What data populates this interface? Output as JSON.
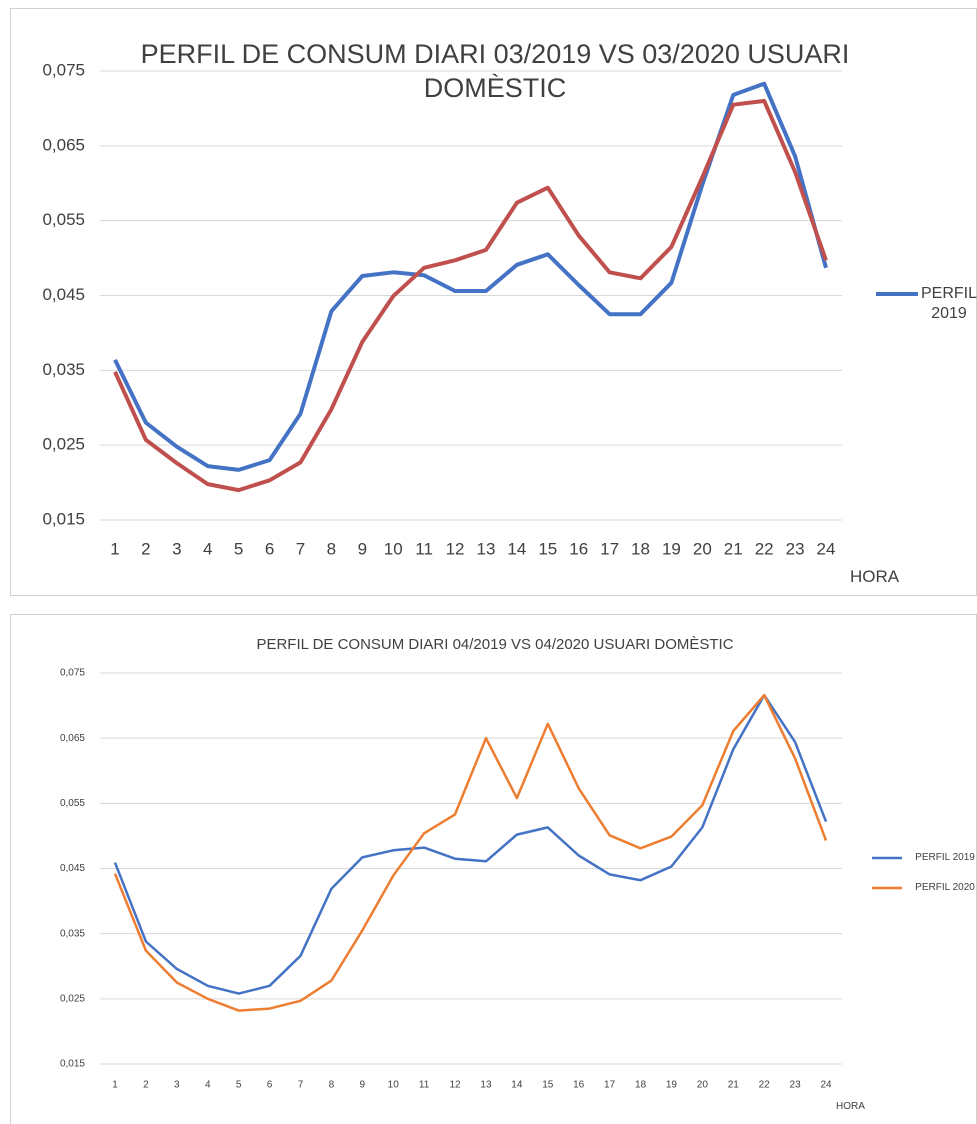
{
  "chart_data": [
    {
      "type": "line",
      "title": "PERFIL DE CONSUM DIARI 03/2019 VS 03/2020 USUARI DOMÈSTIC",
      "xlabel": "HORA",
      "categories": [
        "1",
        "2",
        "3",
        "4",
        "5",
        "6",
        "7",
        "8",
        "9",
        "10",
        "11",
        "12",
        "13",
        "14",
        "15",
        "16",
        "17",
        "18",
        "19",
        "20",
        "21",
        "22",
        "23",
        "24"
      ],
      "series": [
        {
          "name": "PERFIL 2019",
          "color": "#4472c4",
          "values": [
            0.0364,
            0.028,
            0.0248,
            0.0222,
            0.0217,
            0.023,
            0.0292,
            0.0429,
            0.0476,
            0.0481,
            0.0477,
            0.0456,
            0.0456,
            0.0491,
            0.0505,
            0.0464,
            0.0425,
            0.0425,
            0.0467,
            0.0598,
            0.0718,
            0.0733,
            0.0636,
            0.0487
          ]
        },
        {
          "color": "#c0504d",
          "values": [
            0.0348,
            0.0257,
            0.0226,
            0.0198,
            0.019,
            0.0203,
            0.0227,
            0.0298,
            0.0388,
            0.0449,
            0.0487,
            0.0497,
            0.0511,
            0.0574,
            0.0594,
            0.053,
            0.0481,
            0.0473,
            0.0515,
            0.0608,
            0.0705,
            0.071,
            0.0615,
            0.0497
          ]
        }
      ],
      "ylim": [
        0.015,
        0.075
      ],
      "yticks": [
        {
          "value": 0.075,
          "label": "0,075"
        },
        {
          "value": 0.065,
          "label": "0,065"
        },
        {
          "value": 0.055,
          "label": "0,055"
        },
        {
          "value": 0.045,
          "label": "0,045"
        },
        {
          "value": 0.035,
          "label": "0,035"
        },
        {
          "value": 0.025,
          "label": "0,025"
        },
        {
          "value": 0.015,
          "label": "0,015"
        }
      ],
      "grid": true,
      "legend": "right"
    },
    {
      "type": "line",
      "title": "PERFIL DE CONSUM DIARI 04/2019 VS 04/2020 USUARI DOMÈSTIC",
      "xlabel": "HORA",
      "categories": [
        "1",
        "2",
        "3",
        "4",
        "5",
        "6",
        "7",
        "8",
        "9",
        "10",
        "11",
        "12",
        "13",
        "14",
        "15",
        "16",
        "17",
        "18",
        "19",
        "20",
        "21",
        "22",
        "23",
        "24"
      ],
      "series": [
        {
          "name": "PERFIL 2019",
          "color": "#4472c4",
          "values": [
            0.0459,
            0.0338,
            0.0296,
            0.027,
            0.0258,
            0.027,
            0.0316,
            0.0419,
            0.0467,
            0.0478,
            0.0482,
            0.0465,
            0.0461,
            0.0502,
            0.0513,
            0.047,
            0.0441,
            0.0432,
            0.0453,
            0.0513,
            0.0633,
            0.0716,
            0.0644,
            0.0522
          ]
        },
        {
          "name": "PERFIL 2020",
          "color": "#ed7d31",
          "values": [
            0.0442,
            0.0324,
            0.0275,
            0.025,
            0.0232,
            0.0235,
            0.0247,
            0.0278,
            0.0355,
            0.0439,
            0.0504,
            0.0533,
            0.065,
            0.0558,
            0.0672,
            0.0573,
            0.0501,
            0.0481,
            0.0499,
            0.0547,
            0.0661,
            0.0716,
            0.0619,
            0.0493
          ]
        }
      ],
      "ylim": [
        0.015,
        0.075
      ],
      "yticks": [
        {
          "value": 0.075,
          "label": "0,075"
        },
        {
          "value": 0.065,
          "label": "0,065"
        },
        {
          "value": 0.055,
          "label": "0,055"
        },
        {
          "value": 0.045,
          "label": "0,045"
        },
        {
          "value": 0.035,
          "label": "0,035"
        },
        {
          "value": 0.025,
          "label": "0,025"
        },
        {
          "value": 0.015,
          "label": "0,015"
        }
      ],
      "grid": true,
      "legend": "right"
    }
  ]
}
